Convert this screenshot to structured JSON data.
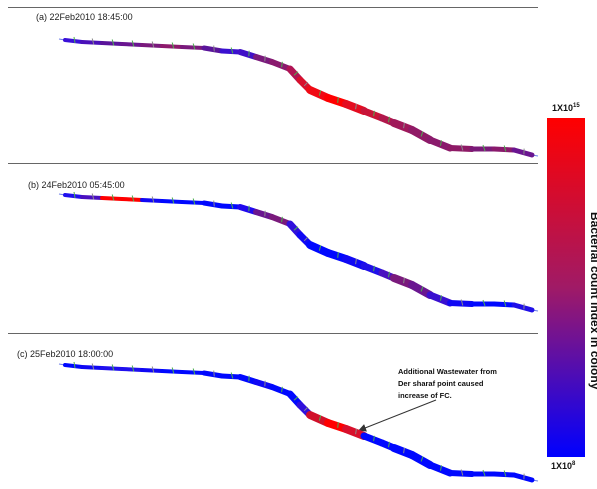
{
  "panels": [
    {
      "id": "a",
      "label": "(a)",
      "timestamp": "22Feb2010 18:45:00",
      "segment_colors": [
        "#3a10d8",
        "#4a10b8",
        "#5a149a",
        "#6a1690",
        "#7a1a7c",
        "#8e1a6c",
        "#7a1a7c",
        "#5a149a",
        "#3a10d0",
        "#4010c8",
        "#7a1a7c",
        "#8a1a6e",
        "#b01454",
        "#d8102c",
        "#f00a14",
        "#ff0000",
        "#e40c20",
        "#c81438",
        "#b0184c",
        "#a0195a",
        "#901a66",
        "#8a1a6c",
        "#8e1a66",
        "#7a1a78",
        "#8a1a6c",
        "#6a1690"
      ]
    },
    {
      "id": "b",
      "label": "(b)",
      "timestamp": "24Feb2010 05:45:00",
      "segment_colors": [
        "#2010ee",
        "#4a10c0",
        "#ff0000",
        "#ff0000",
        "#1008f4",
        "#0008ff",
        "#0008ff",
        "#0008ff",
        "#0008ff",
        "#2008ee",
        "#6a1690",
        "#7a1a7c",
        "#3010dc",
        "#1008f4",
        "#0008ff",
        "#0008ff",
        "#1008f4",
        "#2010e8",
        "#4a12c0",
        "#7a1a7c",
        "#6a1690",
        "#3a10d0",
        "#1008f4",
        "#0008ff",
        "#0008ff",
        "#2010e8"
      ]
    },
    {
      "id": "c",
      "label": "(c)",
      "timestamp": "25Feb2010 18:00:00",
      "segment_colors": [
        "#0008ff",
        "#1008f4",
        "#2010ee",
        "#2010ee",
        "#1008f4",
        "#0008ff",
        "#0008ff",
        "#0008ff",
        "#0008ff",
        "#0008ff",
        "#1008f4",
        "#0008ff",
        "#0008ff",
        "#3010dc",
        "#d0102a",
        "#ff0000",
        "#d8102c",
        "#0008ff",
        "#0008ff",
        "#0008ff",
        "#0008ff",
        "#0008ff",
        "#0008ff",
        "#0008ff",
        "#0008ff",
        "#0008ff"
      ]
    }
  ],
  "annotation": {
    "text": "Additional Wastewater from Der sharaf point caused increase of FC."
  },
  "colorbar": {
    "title": "Bacterial count index in colony",
    "top_label": "1X10",
    "top_exp": "15",
    "bottom_label": "1X10",
    "bottom_exp": "8",
    "top_color": "#ff0000",
    "bottom_color": "#0000ff"
  },
  "colors": {
    "tick": "#4caf50",
    "tick_alt": "#8a8a8a",
    "rule": "#666666",
    "arrow": "#333333"
  }
}
